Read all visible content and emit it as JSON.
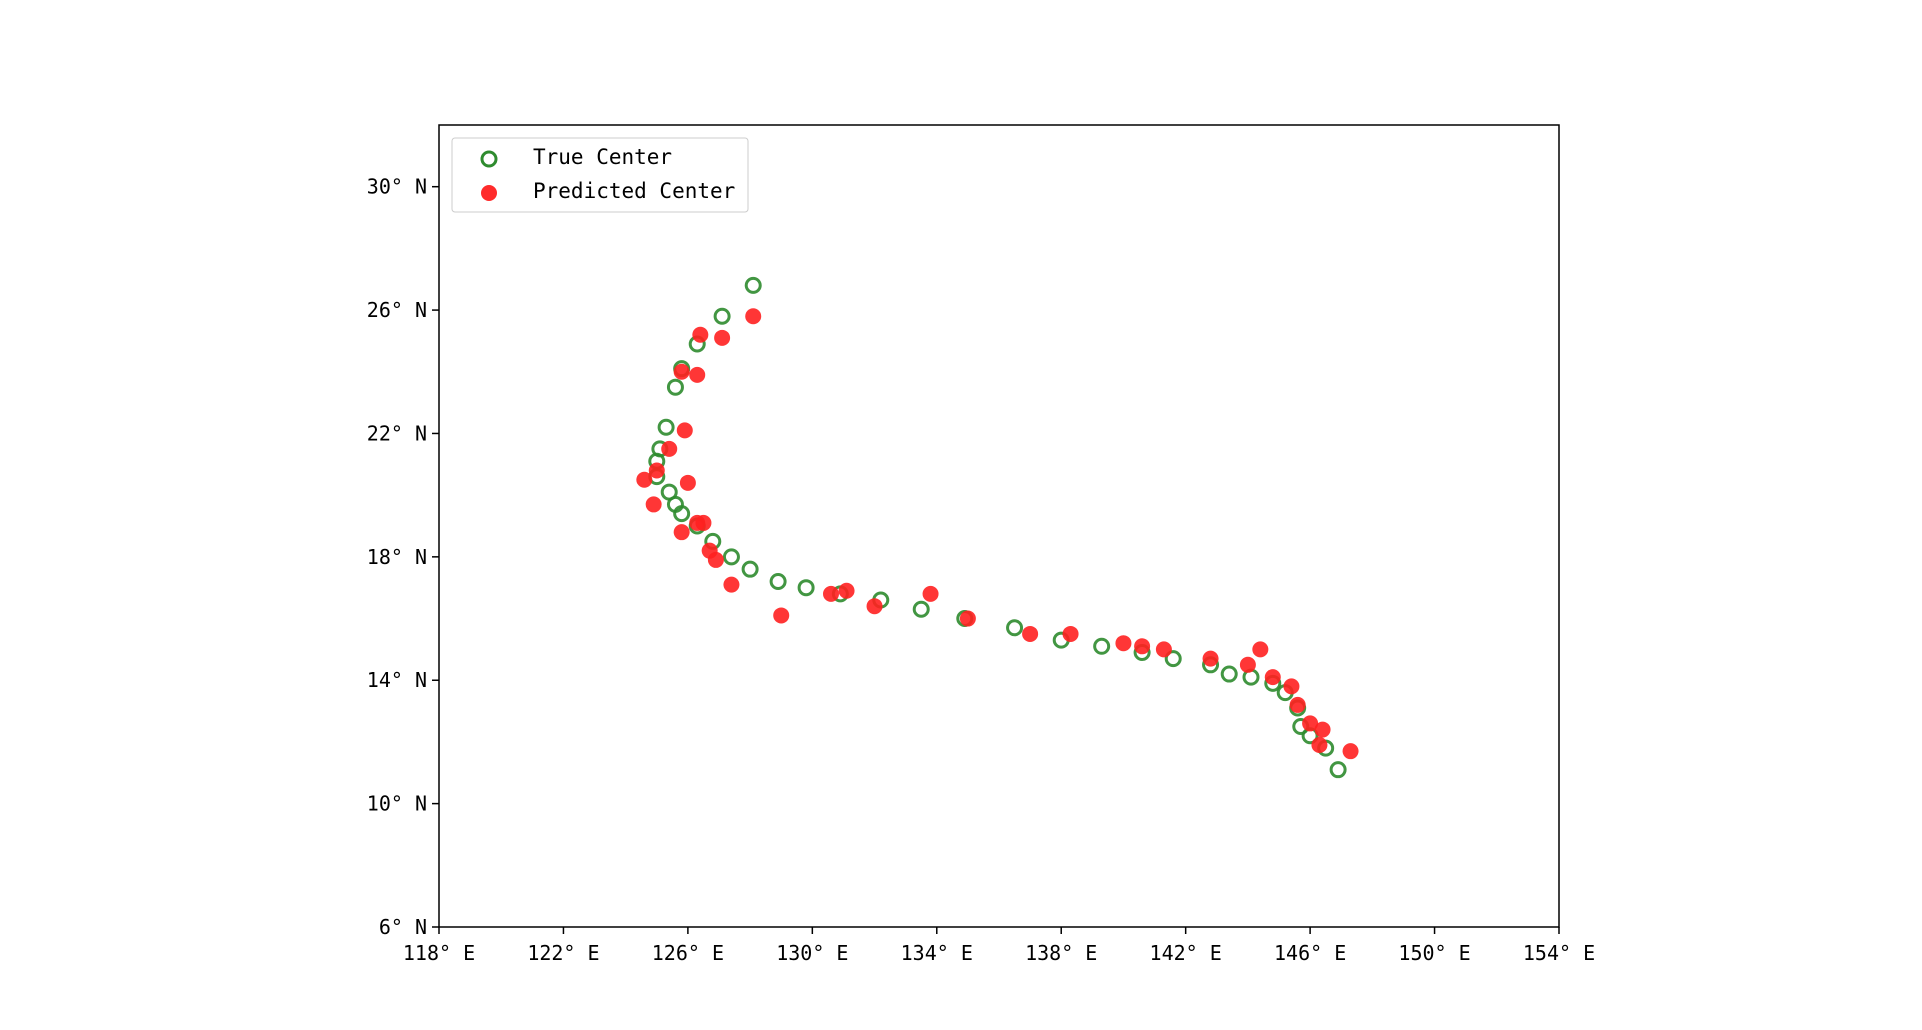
{
  "chart_data": {
    "type": "scatter",
    "title": "",
    "xlabel": "",
    "ylabel": "",
    "xlim": [
      118,
      154
    ],
    "ylim": [
      6,
      32
    ],
    "x_ticks": [
      {
        "value": 118,
        "label": "118° E"
      },
      {
        "value": 122,
        "label": "122° E"
      },
      {
        "value": 126,
        "label": "126° E"
      },
      {
        "value": 130,
        "label": "130° E"
      },
      {
        "value": 134,
        "label": "134° E"
      },
      {
        "value": 138,
        "label": "138° E"
      },
      {
        "value": 142,
        "label": "142° E"
      },
      {
        "value": 146,
        "label": "146° E"
      },
      {
        "value": 150,
        "label": "150° E"
      },
      {
        "value": 154,
        "label": "154° E"
      }
    ],
    "y_ticks": [
      {
        "value": 6,
        "label": "6° N"
      },
      {
        "value": 10,
        "label": "10° N"
      },
      {
        "value": 14,
        "label": "14° N"
      },
      {
        "value": 18,
        "label": "18° N"
      },
      {
        "value": 22,
        "label": "22° N"
      },
      {
        "value": 26,
        "label": "26° N"
      },
      {
        "value": 30,
        "label": "30° N"
      }
    ],
    "grid": false,
    "legend_position": "top-left",
    "series": [
      {
        "name": "True Center",
        "marker": "hollow-circle",
        "color": "#2e8b2e",
        "points": [
          [
            146.9,
            11.1
          ],
          [
            146.5,
            11.8
          ],
          [
            146.0,
            12.2
          ],
          [
            145.7,
            12.5
          ],
          [
            145.6,
            13.1
          ],
          [
            145.2,
            13.6
          ],
          [
            144.8,
            13.9
          ],
          [
            144.1,
            14.1
          ],
          [
            143.4,
            14.2
          ],
          [
            142.8,
            14.5
          ],
          [
            141.6,
            14.7
          ],
          [
            140.6,
            14.9
          ],
          [
            139.3,
            15.1
          ],
          [
            138.0,
            15.3
          ],
          [
            136.5,
            15.7
          ],
          [
            134.9,
            16.0
          ],
          [
            133.5,
            16.3
          ],
          [
            132.2,
            16.6
          ],
          [
            130.9,
            16.8
          ],
          [
            129.8,
            17.0
          ],
          [
            128.9,
            17.2
          ],
          [
            128.0,
            17.6
          ],
          [
            127.4,
            18.0
          ],
          [
            126.8,
            18.5
          ],
          [
            126.3,
            19.0
          ],
          [
            125.8,
            19.4
          ],
          [
            125.6,
            19.7
          ],
          [
            125.4,
            20.1
          ],
          [
            125.0,
            20.6
          ],
          [
            125.0,
            21.1
          ],
          [
            125.1,
            21.5
          ],
          [
            125.3,
            22.2
          ],
          [
            125.6,
            23.5
          ],
          [
            125.8,
            24.1
          ],
          [
            126.3,
            24.9
          ],
          [
            127.1,
            25.8
          ],
          [
            128.1,
            26.8
          ]
        ]
      },
      {
        "name": "Predicted Center",
        "marker": "filled-circle",
        "color": "#ff2020",
        "points": [
          [
            147.3,
            11.7
          ],
          [
            146.3,
            11.9
          ],
          [
            146.4,
            12.4
          ],
          [
            146.0,
            12.6
          ],
          [
            145.6,
            13.2
          ],
          [
            145.4,
            13.8
          ],
          [
            144.8,
            14.1
          ],
          [
            144.4,
            15.0
          ],
          [
            144.0,
            14.5
          ],
          [
            142.8,
            14.7
          ],
          [
            141.3,
            15.0
          ],
          [
            140.6,
            15.1
          ],
          [
            140.0,
            15.2
          ],
          [
            138.3,
            15.5
          ],
          [
            137.0,
            15.5
          ],
          [
            135.0,
            16.0
          ],
          [
            133.8,
            16.8
          ],
          [
            132.0,
            16.4
          ],
          [
            131.1,
            16.9
          ],
          [
            130.6,
            16.8
          ],
          [
            129.0,
            16.1
          ],
          [
            127.4,
            17.1
          ],
          [
            126.9,
            17.9
          ],
          [
            126.7,
            18.2
          ],
          [
            125.8,
            18.8
          ],
          [
            126.5,
            19.1
          ],
          [
            126.3,
            19.1
          ],
          [
            124.9,
            19.7
          ],
          [
            126.0,
            20.4
          ],
          [
            124.6,
            20.5
          ],
          [
            125.0,
            20.8
          ],
          [
            125.4,
            21.5
          ],
          [
            125.9,
            22.1
          ],
          [
            126.3,
            23.9
          ],
          [
            125.8,
            24.0
          ],
          [
            126.4,
            25.2
          ],
          [
            127.1,
            25.1
          ],
          [
            128.1,
            25.8
          ]
        ]
      }
    ]
  }
}
